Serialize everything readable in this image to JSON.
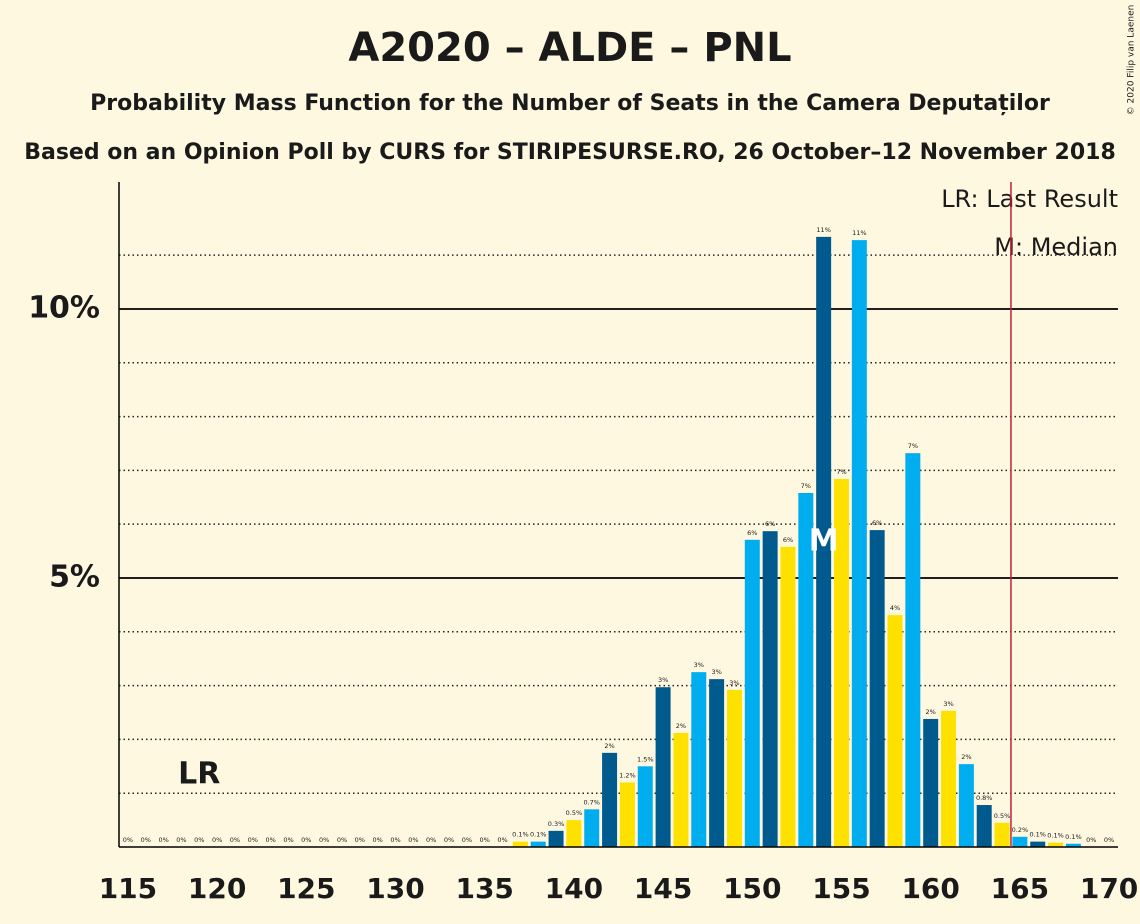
{
  "chart_data": {
    "type": "bar",
    "title": "A2020 – ALDE – PNL",
    "subtitle": "Probability Mass Function for the Number of Seats in the Camera Deputaților",
    "source_line": "Based on an Opinion Poll by CURS for STIRIPESURSE.RO, 26 October–12 November 2018",
    "copyright": "© 2020 Filip van Laenen",
    "legend": [
      "LR: Last Result",
      "M: Median"
    ],
    "last_result": 119,
    "last_result_label": "LR",
    "median": 154,
    "median_label": "M",
    "threshold": 164.5,
    "threshold_color": "#c0203a",
    "x": [
      115,
      116,
      117,
      118,
      119,
      120,
      121,
      122,
      123,
      124,
      125,
      126,
      127,
      128,
      129,
      130,
      131,
      132,
      133,
      134,
      135,
      136,
      137,
      138,
      139,
      140,
      141,
      142,
      143,
      144,
      145,
      146,
      147,
      148,
      149,
      150,
      151,
      152,
      153,
      154,
      155,
      156,
      157,
      158,
      159,
      160,
      161,
      162,
      163,
      164,
      165,
      166,
      167,
      168,
      169,
      170
    ],
    "values": [
      0,
      0,
      0,
      0,
      0,
      0,
      0,
      0,
      0,
      0,
      0,
      0,
      0,
      0,
      0,
      0,
      0,
      0,
      0,
      0,
      0,
      0,
      0.1,
      0.1,
      0.3,
      0.5,
      0.7,
      1.75,
      1.2,
      1.5,
      2.97,
      2.12,
      3.25,
      3.12,
      2.92,
      5.71,
      5.87,
      5.58,
      6.58,
      11.34,
      6.84,
      11.28,
      5.89,
      4.31,
      7.32,
      2.38,
      2.53,
      1.54,
      0.78,
      0.45,
      0.19,
      0.1,
      0.08,
      0.06,
      0,
      0
    ],
    "value_labels": [
      "0%",
      "0%",
      "0%",
      "0%",
      "0%",
      "0%",
      "0%",
      "0%",
      "0%",
      "0%",
      "0%",
      "0%",
      "0%",
      "0%",
      "0%",
      "0%",
      "0%",
      "0%",
      "0%",
      "0%",
      "0%",
      "0%",
      "0.1%",
      "0.1%",
      "0.3%",
      "0.5%",
      "0.7%",
      "2%",
      "1.2%",
      "1.5%",
      "3%",
      "2%",
      "3%",
      "3%",
      "3%",
      "6%",
      "6%",
      "6%",
      "7%",
      "11%",
      "7%",
      "11%",
      "6%",
      "4%",
      "7%",
      "2%",
      "3%",
      "2%",
      "0.8%",
      "0.5%",
      "0.2%",
      "0.1%",
      "0.1%",
      "0.1%",
      "0%",
      "0%"
    ],
    "colors": [
      "#005a8d",
      "#ffe100",
      "#00aeef",
      "#005a8d",
      "#ffe100",
      "#00aeef",
      "#005a8d",
      "#ffe100",
      "#00aeef",
      "#005a8d",
      "#ffe100",
      "#00aeef",
      "#005a8d",
      "#ffe100",
      "#00aeef",
      "#005a8d",
      "#ffe100",
      "#00aeef",
      "#005a8d",
      "#ffe100",
      "#00aeef",
      "#005a8d",
      "#ffe100",
      "#00aeef",
      "#005a8d",
      "#ffe100",
      "#00aeef",
      "#005a8d",
      "#ffe100",
      "#00aeef",
      "#005a8d",
      "#ffe100",
      "#00aeef",
      "#005a8d",
      "#ffe100",
      "#00aeef",
      "#005a8d",
      "#ffe100",
      "#00aeef",
      "#005a8d",
      "#ffe100",
      "#00aeef",
      "#005a8d",
      "#ffe100",
      "#00aeef",
      "#005a8d",
      "#ffe100",
      "#00aeef",
      "#005a8d",
      "#ffe100",
      "#00aeef",
      "#005a8d",
      "#ffe100",
      "#00aeef",
      "#005a8d",
      "#ffe100"
    ],
    "xlim": [
      114.5,
      170.5
    ],
    "xticks": [
      115,
      120,
      125,
      130,
      135,
      140,
      145,
      150,
      155,
      160,
      165,
      170
    ],
    "ylim": [
      0,
      12.36
    ],
    "yticks": [
      {
        "value": 5,
        "label": "5%"
      },
      {
        "value": 10,
        "label": "10%"
      }
    ],
    "minor_grid": [
      1,
      2,
      3,
      4,
      6,
      7,
      8,
      9,
      11
    ]
  }
}
